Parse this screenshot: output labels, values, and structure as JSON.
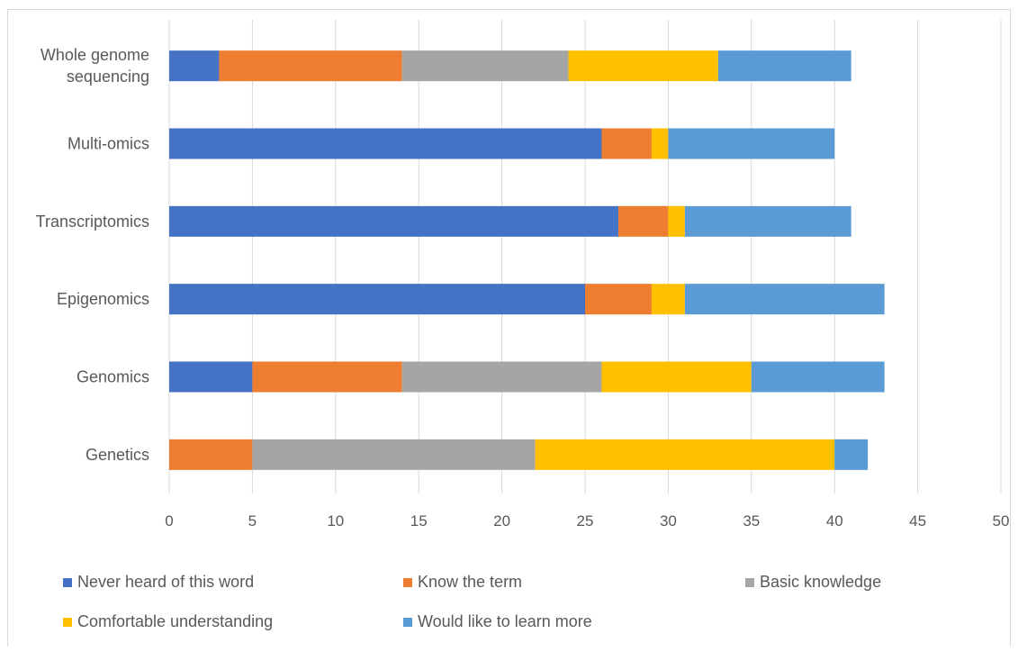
{
  "chart_data": {
    "type": "bar",
    "orientation": "horizontal",
    "stacked": true,
    "categories": [
      "Whole genome sequencing",
      "Multi-omics",
      "Transcriptomics",
      "Epigenomics",
      "Genomics",
      "Genetics"
    ],
    "category_lines": [
      [
        "Whole genome",
        "sequencing"
      ],
      [
        "Multi-omics"
      ],
      [
        "Transcriptomics"
      ],
      [
        "Epigenomics"
      ],
      [
        "Genomics"
      ],
      [
        "Genetics"
      ]
    ],
    "series": [
      {
        "name": "Never heard of this word",
        "color": "#4472c4",
        "values": [
          3,
          26,
          27,
          25,
          5,
          0
        ]
      },
      {
        "name": "Know the term",
        "color": "#ed7d31",
        "values": [
          11,
          3,
          3,
          4,
          9,
          5
        ]
      },
      {
        "name": "Basic knowledge",
        "color": "#a5a5a5",
        "values": [
          10,
          0,
          0,
          0,
          12,
          17
        ]
      },
      {
        "name": "Comfortable understanding",
        "color": "#ffc000",
        "values": [
          9,
          1,
          1,
          2,
          9,
          18
        ]
      },
      {
        "name": "Would like to learn more",
        "color": "#5b9bd5",
        "values": [
          8,
          10,
          10,
          12,
          8,
          2
        ]
      }
    ],
    "xlim": [
      0,
      50
    ],
    "x_ticks": [
      "0",
      "5",
      "10",
      "15",
      "20",
      "25",
      "30",
      "35",
      "40",
      "45",
      "50"
    ],
    "grid": "vertical",
    "legend_position": "bottom"
  }
}
